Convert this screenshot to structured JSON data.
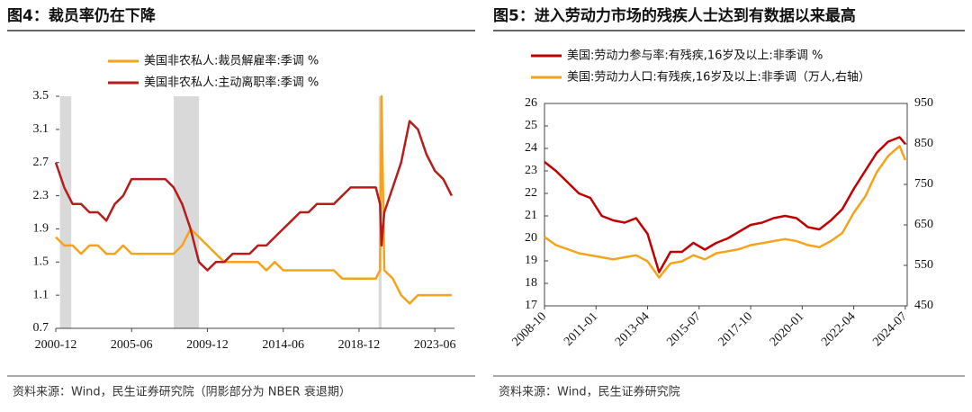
{
  "chart_data": [
    {
      "type": "line",
      "title": "图4：裁员率仍在下降",
      "x": [
        "2000-12",
        "2001-06",
        "2001-12",
        "2002-06",
        "2002-12",
        "2003-06",
        "2003-12",
        "2004-06",
        "2004-12",
        "2005-06",
        "2005-12",
        "2006-06",
        "2006-12",
        "2007-06",
        "2007-12",
        "2008-06",
        "2008-12",
        "2009-06",
        "2009-12",
        "2010-06",
        "2010-12",
        "2011-06",
        "2011-12",
        "2012-06",
        "2012-12",
        "2013-06",
        "2013-12",
        "2014-06",
        "2014-12",
        "2015-06",
        "2015-12",
        "2016-06",
        "2016-12",
        "2017-06",
        "2017-12",
        "2018-06",
        "2018-12",
        "2019-06",
        "2019-12",
        "2020-03",
        "2020-04",
        "2020-06",
        "2020-12",
        "2021-06",
        "2021-12",
        "2022-06",
        "2022-12",
        "2023-06",
        "2023-12",
        "2024-06"
      ],
      "series": [
        {
          "name": "美国非农私人:裁员解雇率:季调 %",
          "color": "#F5A31A",
          "values": [
            1.8,
            1.7,
            1.7,
            1.6,
            1.7,
            1.7,
            1.6,
            1.6,
            1.7,
            1.6,
            1.6,
            1.6,
            1.6,
            1.6,
            1.6,
            1.7,
            1.9,
            1.8,
            1.7,
            1.6,
            1.5,
            1.5,
            1.5,
            1.5,
            1.5,
            1.4,
            1.5,
            1.4,
            1.4,
            1.4,
            1.4,
            1.4,
            1.4,
            1.4,
            1.3,
            1.3,
            1.3,
            1.3,
            1.3,
            1.4,
            3.5,
            1.4,
            1.3,
            1.1,
            1.0,
            1.1,
            1.1,
            1.1,
            1.1,
            1.1
          ]
        },
        {
          "name": "美国非农私人:主动离职率:季调 %",
          "color": "#B71C1C",
          "values": [
            2.7,
            2.4,
            2.2,
            2.2,
            2.1,
            2.1,
            2.0,
            2.2,
            2.3,
            2.5,
            2.5,
            2.5,
            2.5,
            2.5,
            2.4,
            2.2,
            1.9,
            1.5,
            1.4,
            1.5,
            1.5,
            1.6,
            1.6,
            1.6,
            1.7,
            1.7,
            1.8,
            1.9,
            2.0,
            2.1,
            2.1,
            2.2,
            2.2,
            2.2,
            2.3,
            2.4,
            2.4,
            2.4,
            2.4,
            2.2,
            1.7,
            2.1,
            2.4,
            2.7,
            3.2,
            3.1,
            2.8,
            2.6,
            2.5,
            2.3
          ]
        }
      ],
      "shaded": [
        [
          "2001-03",
          "2001-11"
        ],
        [
          "2007-12",
          "2009-06"
        ],
        [
          "2020-02",
          "2020-04"
        ]
      ],
      "xlim": [
        "2000-12",
        "2024-08"
      ],
      "xticks": [
        "2000-12",
        "2005-06",
        "2009-12",
        "2014-06",
        "2018-12",
        "2023-06"
      ],
      "ylim": [
        0.7,
        3.5
      ],
      "yticks": [
        3.5,
        3.1,
        2.7,
        2.3,
        1.9,
        1.5,
        1.1,
        0.7
      ],
      "source": "资料来源：Wind，民生证券研究院（阴影部分为 NBER 衰退期）"
    },
    {
      "type": "line",
      "title": "图5：进入劳动力市场的残疾人士达到有数据以来最高",
      "x": [
        "2008-10",
        "2009-04",
        "2009-10",
        "2010-04",
        "2010-10",
        "2011-04",
        "2011-10",
        "2012-04",
        "2012-10",
        "2013-04",
        "2013-10",
        "2014-04",
        "2014-10",
        "2015-04",
        "2015-10",
        "2016-04",
        "2016-10",
        "2017-04",
        "2017-10",
        "2018-04",
        "2018-10",
        "2019-04",
        "2019-10",
        "2020-04",
        "2020-10",
        "2021-04",
        "2021-10",
        "2022-04",
        "2022-10",
        "2023-04",
        "2023-10",
        "2024-04",
        "2024-07"
      ],
      "series": [
        {
          "name": "美国:劳动力参与率:有残疾,16岁及以上:非季调 %",
          "color": "#C00000",
          "values": [
            23.4,
            23.0,
            22.5,
            22.0,
            21.8,
            21.0,
            20.8,
            20.7,
            20.9,
            20.2,
            18.5,
            19.4,
            19.4,
            19.8,
            19.5,
            19.8,
            20.0,
            20.3,
            20.6,
            20.7,
            20.9,
            21.0,
            20.9,
            20.5,
            20.4,
            20.8,
            21.3,
            22.2,
            23.0,
            23.8,
            24.3,
            24.5,
            24.2
          ]
        },
        {
          "name": "美国:劳动力人口:有残疾,16岁及以上:非季调（万人,右轴）",
          "color": "#F5A31A",
          "axis": "y2",
          "values": [
            620,
            600,
            590,
            580,
            575,
            570,
            565,
            570,
            575,
            560,
            520,
            555,
            560,
            575,
            565,
            580,
            585,
            590,
            600,
            605,
            610,
            615,
            610,
            600,
            595,
            610,
            630,
            680,
            720,
            780,
            820,
            845,
            810
          ]
        }
      ],
      "xlim": [
        "2008-10",
        "2024-08"
      ],
      "xticks": [
        "2008-10",
        "2011-01",
        "2013-04",
        "2015-07",
        "2017-10",
        "2020-01",
        "2022-04",
        "2024-07"
      ],
      "ylim": [
        17,
        26
      ],
      "yticks": [
        26,
        25,
        24,
        23,
        22,
        21,
        20,
        19,
        18,
        17
      ],
      "y2lim": [
        450,
        950
      ],
      "y2ticks": [
        950,
        850,
        750,
        650,
        550,
        450
      ],
      "source": "资料来源：Wind，民生证券研究院"
    }
  ]
}
